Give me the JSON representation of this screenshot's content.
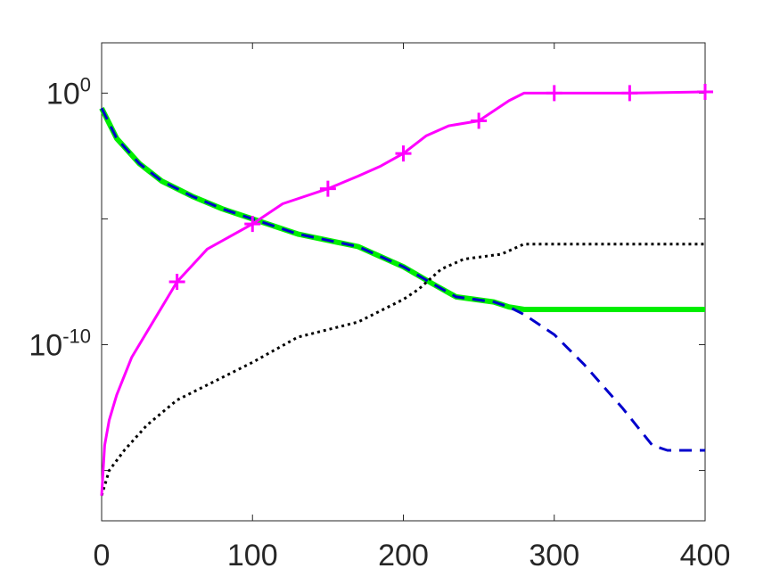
{
  "chart_data": {
    "type": "line",
    "title": "",
    "xlabel": "",
    "ylabel": "",
    "xlim": [
      0,
      400
    ],
    "ylim_log10": [
      -17,
      2
    ],
    "yscale": "log",
    "grid": false,
    "x_ticks": [
      0,
      100,
      200,
      300,
      400
    ],
    "x_tick_labels": [
      "0",
      "100",
      "200",
      "300",
      "400"
    ],
    "y_ticks": [
      {
        "exp": 0,
        "base": "10",
        "sup": "0"
      },
      {
        "exp": -10,
        "base": "10",
        "sup": "-10"
      }
    ],
    "series": [
      {
        "color": "#ff00ff",
        "style": "solid-plus-markers",
        "points": [
          [
            0,
            -16
          ],
          [
            2,
            -14
          ],
          [
            5,
            -13
          ],
          [
            10,
            -12
          ],
          [
            20,
            -10.5
          ],
          [
            35,
            -9
          ],
          [
            50,
            -7.5
          ],
          [
            70,
            -6.2
          ],
          [
            100,
            -5.2
          ],
          [
            120,
            -4.4
          ],
          [
            150,
            -3.8
          ],
          [
            170,
            -3.3
          ],
          [
            185,
            -2.9
          ],
          [
            200,
            -2.4
          ],
          [
            215,
            -1.7
          ],
          [
            230,
            -1.3
          ],
          [
            250,
            -1.1
          ],
          [
            270,
            -0.3
          ],
          [
            280,
            0
          ],
          [
            300,
            0
          ],
          [
            350,
            0
          ],
          [
            400,
            0.05
          ]
        ],
        "markers_x": [
          50,
          100,
          150,
          200,
          250,
          300,
          350,
          400
        ]
      },
      {
        "color": "#00ee00",
        "style": "solid-thick",
        "points": [
          [
            0,
            -0.6
          ],
          [
            10,
            -1.8
          ],
          [
            25,
            -2.8
          ],
          [
            40,
            -3.5
          ],
          [
            60,
            -4.1
          ],
          [
            80,
            -4.6
          ],
          [
            100,
            -5.0
          ],
          [
            130,
            -5.6
          ],
          [
            170,
            -6.1
          ],
          [
            200,
            -6.9
          ],
          [
            220,
            -7.6
          ],
          [
            235,
            -8.1
          ],
          [
            260,
            -8.3
          ],
          [
            270,
            -8.5
          ],
          [
            280,
            -8.6
          ],
          [
            300,
            -8.6
          ],
          [
            400,
            -8.6
          ]
        ]
      },
      {
        "color": "#0000cc",
        "style": "dashed",
        "points": [
          [
            0,
            -0.6
          ],
          [
            10,
            -1.8
          ],
          [
            25,
            -2.8
          ],
          [
            40,
            -3.5
          ],
          [
            60,
            -4.1
          ],
          [
            80,
            -4.6
          ],
          [
            100,
            -5.0
          ],
          [
            130,
            -5.6
          ],
          [
            170,
            -6.1
          ],
          [
            200,
            -6.9
          ],
          [
            220,
            -7.6
          ],
          [
            235,
            -8.1
          ],
          [
            260,
            -8.3
          ],
          [
            270,
            -8.5
          ],
          [
            280,
            -8.8
          ],
          [
            300,
            -9.6
          ],
          [
            320,
            -10.8
          ],
          [
            345,
            -12.5
          ],
          [
            365,
            -14
          ],
          [
            375,
            -14.2
          ],
          [
            390,
            -14.2
          ],
          [
            400,
            -14.2
          ]
        ]
      },
      {
        "color": "#000000",
        "style": "dotted",
        "points": [
          [
            0,
            -16
          ],
          [
            2,
            -15.6
          ],
          [
            5,
            -15
          ],
          [
            15,
            -14.2
          ],
          [
            30,
            -13.2
          ],
          [
            50,
            -12.2
          ],
          [
            70,
            -11.6
          ],
          [
            100,
            -10.7
          ],
          [
            130,
            -9.7
          ],
          [
            170,
            -9.1
          ],
          [
            200,
            -8.2
          ],
          [
            210,
            -7.8
          ],
          [
            225,
            -7.0
          ],
          [
            240,
            -6.6
          ],
          [
            265,
            -6.4
          ],
          [
            280,
            -6.0
          ],
          [
            300,
            -6.0
          ],
          [
            400,
            -6.0
          ]
        ]
      }
    ]
  }
}
